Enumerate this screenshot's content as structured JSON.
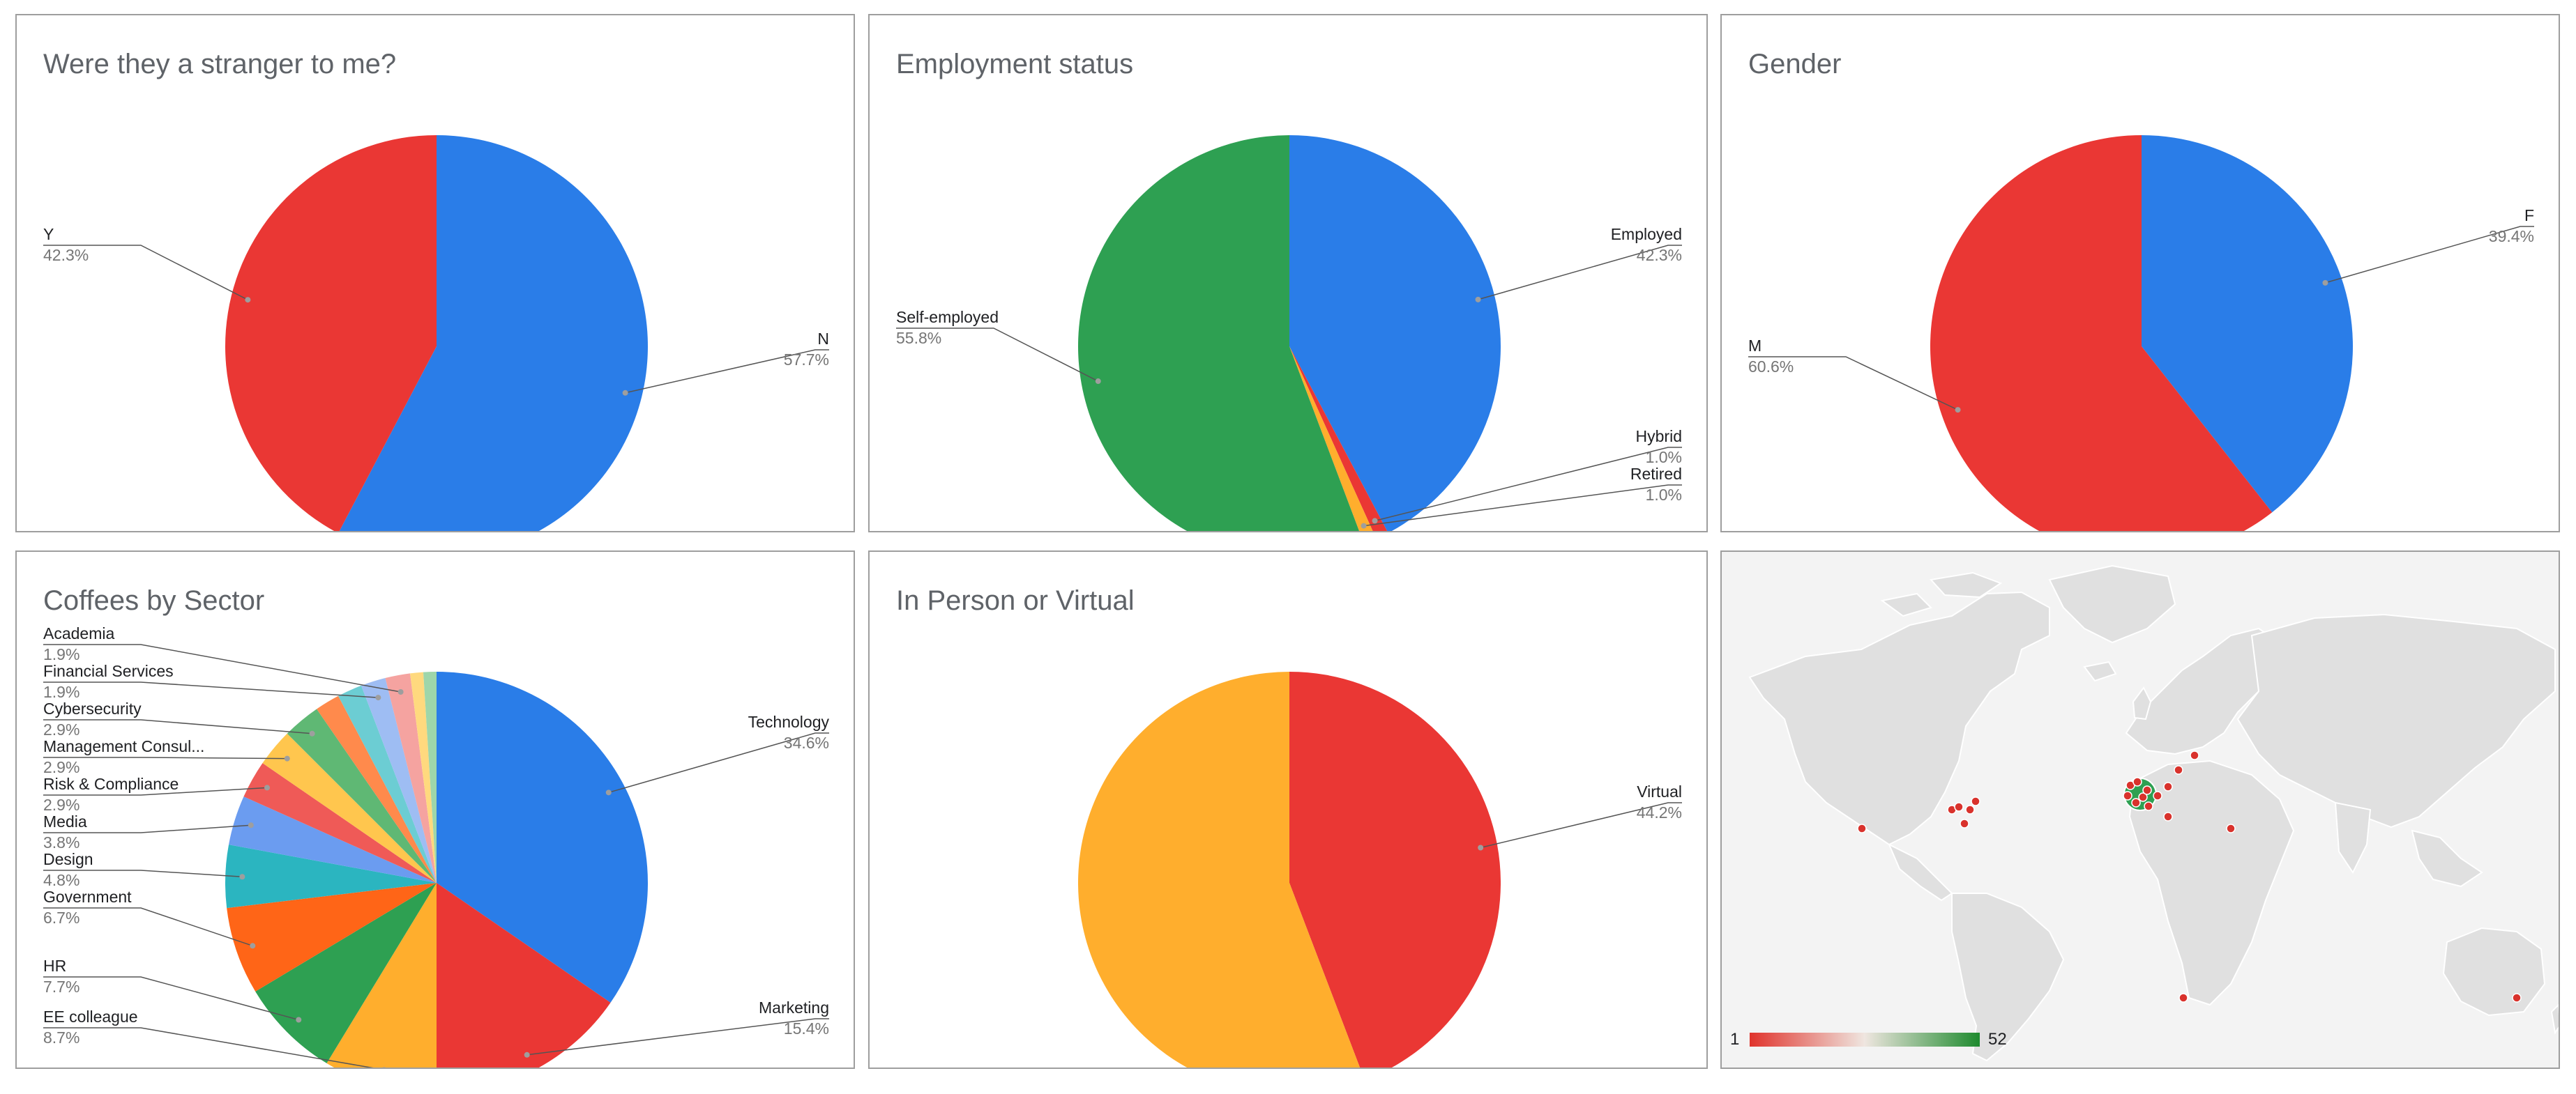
{
  "colors": {
    "blue": "#2a7de8",
    "red": "#ea3734",
    "green": "#2ea052",
    "orange": "#ffae2d",
    "marker": "#d9322c"
  },
  "chart_data": [
    {
      "id": "stranger",
      "type": "pie",
      "title": "Were they a stranger to me?",
      "slices": [
        {
          "label": "N",
          "value": 57.7,
          "display": "57.7%",
          "color": "#2a7de8"
        },
        {
          "label": "Y",
          "value": 42.3,
          "display": "42.3%",
          "color": "#ea3734"
        }
      ]
    },
    {
      "id": "employment",
      "type": "pie",
      "title": "Employment status",
      "slices": [
        {
          "label": "Employed",
          "value": 42.3,
          "display": "42.3%",
          "color": "#2a7de8"
        },
        {
          "label": "Hybrid",
          "value": 1.0,
          "display": "1.0%",
          "color": "#ea3734"
        },
        {
          "label": "Retired",
          "value": 1.0,
          "display": "1.0%",
          "color": "#ffae2d"
        },
        {
          "label": "Self-employed",
          "value": 55.8,
          "display": "55.8%",
          "color": "#2ea052"
        }
      ]
    },
    {
      "id": "gender",
      "type": "pie",
      "title": "Gender",
      "slices": [
        {
          "label": "F",
          "value": 39.4,
          "display": "39.4%",
          "color": "#2a7de8"
        },
        {
          "label": "M",
          "value": 60.6,
          "display": "60.6%",
          "color": "#ea3734"
        }
      ]
    },
    {
      "id": "sector",
      "type": "pie",
      "title": "Coffees by Sector",
      "slices": [
        {
          "label": "Technology",
          "value": 34.6,
          "display": "34.6%",
          "color": "#2a7de8"
        },
        {
          "label": "Marketing",
          "value": 15.4,
          "display": "15.4%",
          "color": "#ea3734"
        },
        {
          "label": "EE colleague",
          "value": 8.7,
          "display": "8.7%",
          "color": "#ffae2d"
        },
        {
          "label": "HR",
          "value": 7.7,
          "display": "7.7%",
          "color": "#2ea052"
        },
        {
          "label": "Government",
          "value": 6.7,
          "display": "6.7%",
          "color": "#ff6517"
        },
        {
          "label": "Design",
          "value": 4.8,
          "display": "4.8%",
          "color": "#2bb5c0"
        },
        {
          "label": "Media",
          "value": 3.8,
          "display": "3.8%",
          "color": "#6b9cf0"
        },
        {
          "label": "Risk & Compliance",
          "value": 2.9,
          "display": "2.9%",
          "color": "#ef5a57"
        },
        {
          "label": "Management Consul...",
          "value": 2.9,
          "display": "2.9%",
          "color": "#ffc64e"
        },
        {
          "label": "Cybersecurity",
          "value": 2.9,
          "display": "2.9%",
          "color": "#5fb874"
        },
        {
          "label": "",
          "value": 1.9,
          "display": "",
          "color": "#ff8a4c"
        },
        {
          "label": "",
          "value": 1.9,
          "display": "",
          "color": "#6ccdd3"
        },
        {
          "label": "Financial Services",
          "value": 1.9,
          "display": "1.9%",
          "color": "#9ebdf3"
        },
        {
          "label": "Academia",
          "value": 1.9,
          "display": "1.9%",
          "color": "#f5a3a0"
        },
        {
          "label": "",
          "value": 1.0,
          "display": "",
          "color": "#ffd97e"
        },
        {
          "label": "",
          "value": 1.0,
          "display": "",
          "color": "#9ed6aa"
        }
      ]
    },
    {
      "id": "inperson",
      "type": "pie",
      "title": "In Person or Virtual",
      "slices": [
        {
          "label": "Virtual",
          "value": 44.2,
          "display": "44.2%",
          "color": "#ea3734"
        },
        {
          "label": "",
          "value": 55.8,
          "display": "",
          "color": "#ffae2d"
        }
      ]
    }
  ],
  "map": {
    "legend_min": "1",
    "legend_max": "52",
    "gradient": [
      "#e0332c",
      "#efe6e0",
      "#1e8a2e"
    ]
  }
}
